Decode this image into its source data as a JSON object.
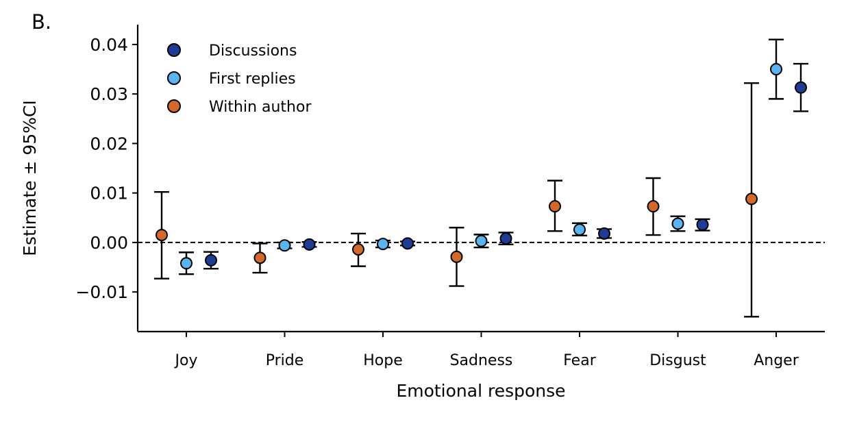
{
  "panel_label": "B.",
  "chart_data": {
    "type": "scatter",
    "subtype": "point-with-error-bars",
    "xlabel": "Emotional response",
    "ylabel": "Estimate ± 95%CI",
    "categories": [
      "Joy",
      "Pride",
      "Hope",
      "Sadness",
      "Fear",
      "Disgust",
      "Anger"
    ],
    "ylim": [
      -0.018,
      0.044
    ],
    "yticks": [
      -0.01,
      0.0,
      0.01,
      0.02,
      0.03,
      0.04
    ],
    "ytick_labels": [
      "−0.01",
      "0.00",
      "0.01",
      "0.02",
      "0.03",
      "0.04"
    ],
    "reference_line": {
      "y": 0,
      "style": "dashed"
    },
    "legend": {
      "position": "top-left"
    },
    "series": [
      {
        "name": "Within author",
        "color": "#d2692a",
        "estimate": [
          0.0015,
          -0.0031,
          -0.0014,
          -0.0029,
          0.0073,
          0.0073,
          0.0088
        ],
        "lower": [
          -0.0073,
          -0.0061,
          -0.0048,
          -0.0088,
          0.0023,
          0.0015,
          -0.015
        ],
        "upper": [
          0.0102,
          -0.0002,
          0.0018,
          0.003,
          0.0125,
          0.013,
          0.0322
        ]
      },
      {
        "name": "First replies",
        "color": "#5ab4f0",
        "estimate": [
          -0.0042,
          -0.0006,
          -0.0003,
          0.0003,
          0.0026,
          0.0038,
          0.035
        ],
        "lower": [
          -0.0064,
          -0.0012,
          -0.001,
          -0.001,
          0.0014,
          0.0023,
          0.029
        ],
        "upper": [
          -0.002,
          0.0,
          0.0004,
          0.0016,
          0.0039,
          0.0053,
          0.041
        ]
      },
      {
        "name": "Discussions",
        "color": "#1e3c96",
        "estimate": [
          -0.0036,
          -0.0004,
          -0.0002,
          0.0008,
          0.0018,
          0.0036,
          0.0313
        ],
        "lower": [
          -0.0053,
          -0.0009,
          -0.0006,
          -0.0004,
          0.0009,
          0.0024,
          0.0265
        ],
        "upper": [
          -0.0019,
          0.0001,
          0.0002,
          0.002,
          0.0027,
          0.0047,
          0.0361
        ]
      }
    ],
    "legend_order": [
      "Discussions",
      "First replies",
      "Within author"
    ]
  }
}
